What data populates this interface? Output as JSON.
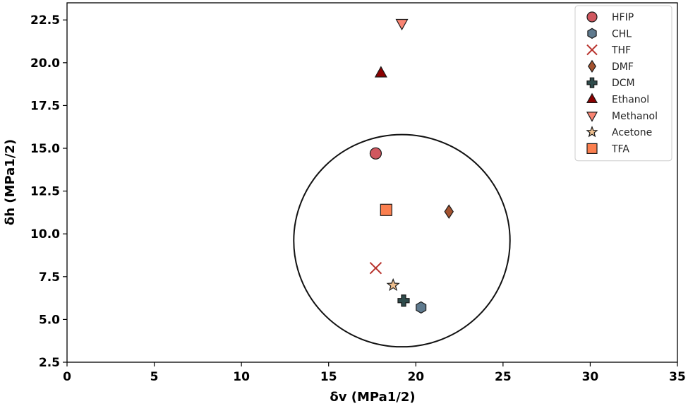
{
  "chart_data": {
    "type": "scatter",
    "xlabel": "δv (MPa1/2)",
    "ylabel": "δh (MPa1/2)",
    "xlim": [
      0,
      35
    ],
    "ylim": [
      2.5,
      23.5
    ],
    "x_ticks": [
      "0",
      "5",
      "10",
      "15",
      "20",
      "25",
      "30",
      "35"
    ],
    "y_ticks": [
      "2.5",
      "5.0",
      "7.5",
      "10.0",
      "12.5",
      "15.0",
      "17.5",
      "20.0",
      "22.5"
    ],
    "grid": false,
    "legend_position": "top-right",
    "circle": {
      "cx": 19.2,
      "cy": 9.6,
      "r": 6.2
    },
    "series": [
      {
        "name": "HFIP",
        "marker": "circle",
        "color": "#d0575f",
        "x": 17.7,
        "y": 14.7
      },
      {
        "name": "CHL",
        "marker": "hexagon",
        "color": "#5f7a8e",
        "x": 20.3,
        "y": 5.7
      },
      {
        "name": "THF",
        "marker": "x",
        "color": "#b8332d",
        "x": 17.7,
        "y": 8.0
      },
      {
        "name": "DMF",
        "marker": "diamond",
        "color": "#a3522f",
        "x": 21.9,
        "y": 11.3
      },
      {
        "name": "DCM",
        "marker": "plus",
        "color": "#2f4b4b",
        "x": 19.3,
        "y": 6.1
      },
      {
        "name": "Ethanol",
        "marker": "triangle-up",
        "color": "#8b0000",
        "x": 18.0,
        "y": 19.4
      },
      {
        "name": "Methanol",
        "marker": "triangle-down",
        "color": "#f98472",
        "x": 19.2,
        "y": 22.3
      },
      {
        "name": "Acetone",
        "marker": "star",
        "color": "#eebf8f",
        "x": 18.7,
        "y": 7.0
      },
      {
        "name": "TFA",
        "marker": "square",
        "color": "#fb7f4f",
        "x": 18.3,
        "y": 11.4
      }
    ]
  }
}
